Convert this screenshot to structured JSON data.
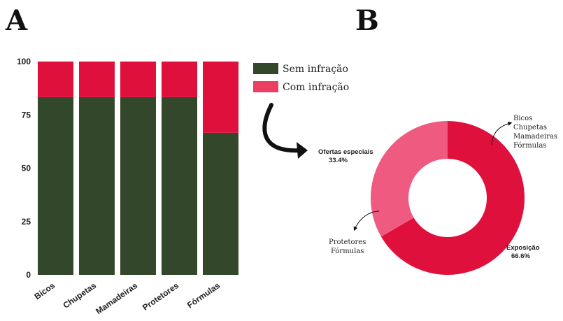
{
  "panels": {
    "a": "A",
    "b": "B"
  },
  "colors": {
    "sem": "#33472a",
    "com_bar": "#e0103c",
    "com_legend": "#ec3d63",
    "donut_main": "#e0103c",
    "donut_light": "#ef5a80",
    "arrow": "#111111"
  },
  "chart_data": [
    {
      "type": "bar",
      "stacked": true,
      "categories": [
        "Bicos",
        "Chupetas",
        "Mamadeiras",
        "Protetores",
        "Fórmulas"
      ],
      "series": [
        {
          "name": "Sem infração",
          "values": [
            83.3,
            83.3,
            83.3,
            83.3,
            66.6
          ]
        },
        {
          "name": "Com infração",
          "values": [
            16.7,
            16.7,
            16.7,
            16.7,
            33.4
          ]
        }
      ],
      "yticks": [
        "0",
        "25",
        "50",
        "75",
        "100"
      ],
      "ylim": [
        0,
        100
      ],
      "legend": [
        "Sem infração",
        "Com infração"
      ],
      "legend_position": "right"
    },
    {
      "type": "pie",
      "donut": true,
      "slices": [
        {
          "label": "Exposição",
          "value": 66.6,
          "display": "66.6%"
        },
        {
          "label": "Ofertas especiais",
          "value": 33.4,
          "display": "33.4%"
        }
      ],
      "annotations": [
        {
          "lines": [
            "Bicos",
            "Chupetas",
            "Mamadeiras",
            "Fórmulas"
          ]
        },
        {
          "lines": [
            "Protetores",
            "Fórmulas"
          ]
        }
      ]
    }
  ]
}
